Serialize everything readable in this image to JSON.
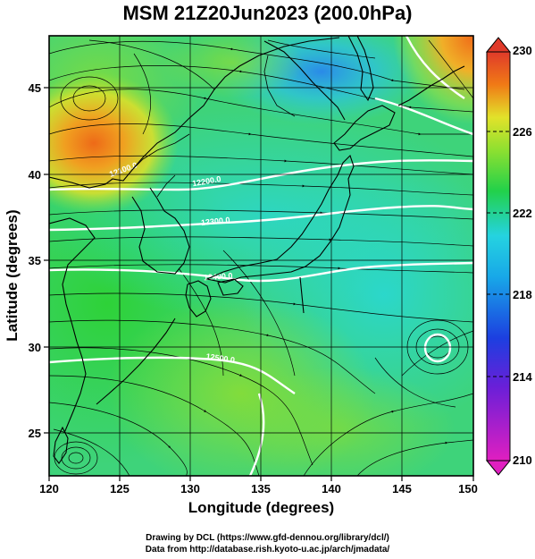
{
  "title": "MSM 21Z20Jun2023 (200.0hPa)",
  "xaxis": {
    "label": "Longitude (degrees)",
    "ticks": [
      "120",
      "125",
      "130",
      "135",
      "140",
      "145",
      "150"
    ]
  },
  "yaxis": {
    "label": "Latitude  (degrees)",
    "ticks": [
      "25",
      "30",
      "35",
      "40",
      "45"
    ]
  },
  "colorbar": {
    "ticks": [
      "230",
      "226",
      "222",
      "218",
      "214",
      "210"
    ]
  },
  "contours": {
    "labels": [
      "12100.0",
      "12200.0",
      "12300.0",
      "12400.0",
      "12500.0"
    ]
  },
  "credits": {
    "line1": "Drawing by DCL (https://www.gfd-dennou.org/library/dcl/)",
    "line2": "Data from http://database.rish.kyoto-u.ac.jp/arch/jmadata/"
  },
  "chart_data": {
    "type": "heatmap",
    "variable": "temperature with wind streamlines and geopotential height contours",
    "xlim": [
      120,
      150
    ],
    "ylim": [
      22.6,
      47.6
    ],
    "color_range": [
      210,
      230
    ],
    "colors": {
      "magenta": "#e01fc0",
      "blue": "#1c3fe0",
      "cyan": "#25d3e0",
      "green": "#22d14a",
      "yellow": "#e2e22a",
      "orange": "#f07a16",
      "red": "#e03a2a"
    }
  }
}
